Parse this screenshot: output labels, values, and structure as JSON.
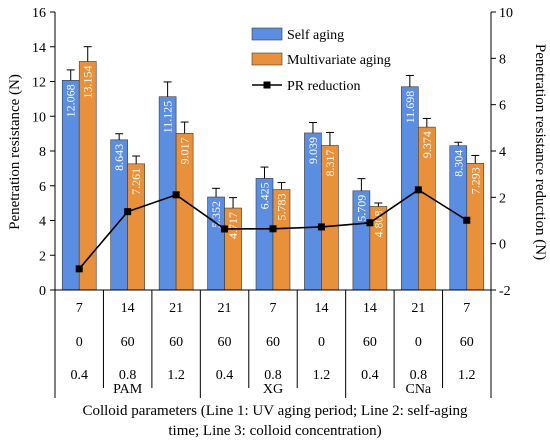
{
  "chart_data": {
    "type": "bar",
    "title": "",
    "ylabel": "Penetration resistance (N)",
    "y2label": "Penetration resistance reduction (N)",
    "xlabel": "Colloid parameters (Line 1: UV aging period; Line 2: self-aging time; Line 3: colloid concentration)",
    "xlabel_lines": [
      "Colloid parameters (Line 1: UV aging period; Line 2: self-aging",
      "time; Line 3: colloid concentration)"
    ],
    "ylim": [
      0,
      16
    ],
    "y2lim": [
      -2,
      10
    ],
    "yticks": [
      "0",
      "2",
      "4",
      "6",
      "8",
      "10",
      "12",
      "14",
      "16"
    ],
    "y2ticks": [
      "-2",
      "0",
      "2",
      "4",
      "6",
      "8",
      "10"
    ],
    "row1": [
      "7",
      "14",
      "21",
      "21",
      "7",
      "14",
      "14",
      "21",
      "7"
    ],
    "row2": [
      "0",
      "60",
      "60",
      "60",
      "60",
      "0",
      "60",
      "0",
      "60"
    ],
    "row3": [
      "0.4",
      "0.8",
      "1.2",
      "0.4",
      "0.8",
      "1.2",
      "0.4",
      "0.8",
      "1.2"
    ],
    "groups": [
      {
        "label": "PAM",
        "span": 3
      },
      {
        "label": "XG",
        "span": 3
      },
      {
        "label": "CNa",
        "span": 3
      }
    ],
    "series": [
      {
        "name": "Self aging",
        "color": "#5b8de0",
        "values": [
          12.068,
          8.643,
          11.125,
          5.352,
          6.425,
          9.039,
          5.709,
          11.698,
          8.304
        ],
        "labels": [
          "12.068",
          "8.643",
          "11.125",
          "5.352",
          "6.425",
          "9.039",
          "5.709",
          "11.698",
          "8.304"
        ],
        "errors": [
          0.6,
          0.35,
          0.85,
          0.5,
          0.65,
          0.6,
          0.7,
          0.65,
          0.2
        ]
      },
      {
        "name": "Multivariate aging",
        "color": "#e8913a",
        "values": [
          13.154,
          7.261,
          9.017,
          4.717,
          5.783,
          8.317,
          4.808,
          9.374,
          7.293
        ],
        "labels": [
          "13.154",
          "7.261",
          "9.017",
          "4.717",
          "5.783",
          "8.317",
          "4.808",
          "9.374",
          "7.293"
        ],
        "errors": [
          0.85,
          0.45,
          0.65,
          0.6,
          0.4,
          0.75,
          0.2,
          0.5,
          0.45
        ]
      }
    ],
    "line": {
      "name": "PR reduction",
      "color": "#000000",
      "values": [
        -1.086,
        1.382,
        2.108,
        0.635,
        0.642,
        0.722,
        0.901,
        2.324,
        1.011
      ]
    },
    "legend_position": "top-center",
    "grid": false
  }
}
